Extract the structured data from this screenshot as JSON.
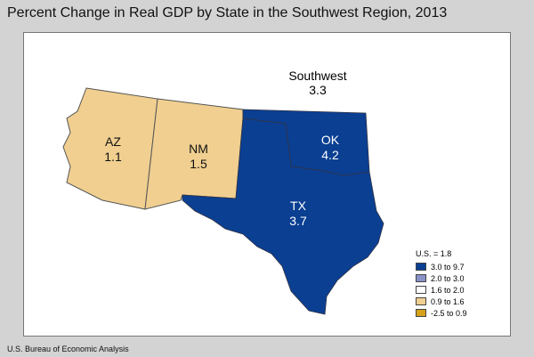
{
  "title": "Percent Change in Real GDP by State in the Southwest Region, 2013",
  "region": {
    "name": "Southwest",
    "value": "3.3"
  },
  "states": [
    {
      "abbr": "AZ",
      "value": "1.1",
      "color": "#f0cf90"
    },
    {
      "abbr": "NM",
      "value": "1.5",
      "color": "#f0cf90"
    },
    {
      "abbr": "OK",
      "value": "4.2",
      "color": "#0a3f92"
    },
    {
      "abbr": "TX",
      "value": "3.7",
      "color": "#0a3f92"
    }
  ],
  "legend": {
    "title": "U.S. = 1.8",
    "items": [
      {
        "label": "3.0 to 9.7",
        "color": "#0a3f92"
      },
      {
        "label": "2.0 to 3.0",
        "color": "#8a93c8"
      },
      {
        "label": "1.6 to 2.0",
        "color": "#ffffff"
      },
      {
        "label": "0.9 to 1.6",
        "color": "#f0cf90"
      },
      {
        "label": "-2.5 to 0.9",
        "color": "#d6a21a"
      }
    ]
  },
  "source": "U.S. Bureau of Economic Analysis"
}
